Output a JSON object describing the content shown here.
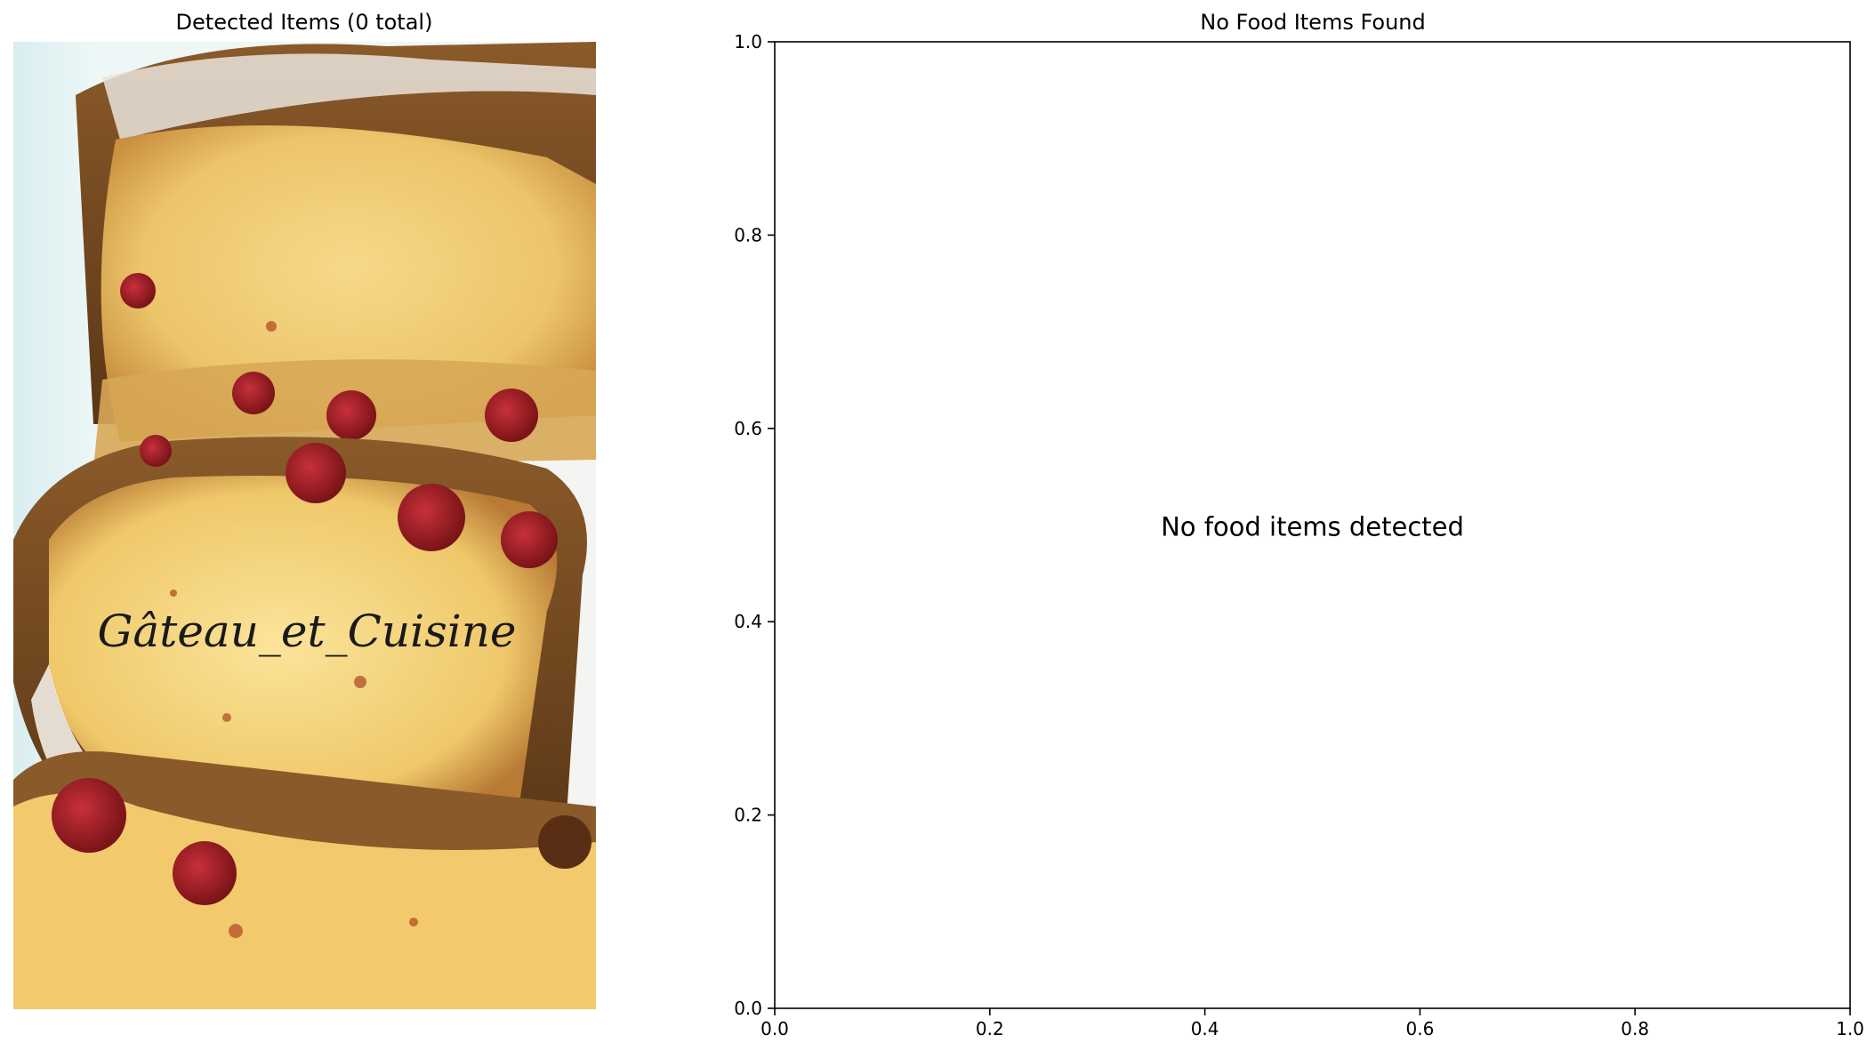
{
  "left_panel": {
    "title": "Detected Items (0 total)",
    "photo_watermark": "Gâteau_et_Cuisine",
    "photo_subject": "sliced cherry loaf cake dusted with powdered sugar"
  },
  "chart_data": {
    "type": "scatter",
    "title": "No Food Items Found",
    "xlabel": "",
    "ylabel": "",
    "xlim": [
      0.0,
      1.0
    ],
    "ylim": [
      0.0,
      1.0
    ],
    "x_ticks": [
      "0.0",
      "0.2",
      "0.4",
      "0.6",
      "0.8",
      "1.0"
    ],
    "y_ticks": [
      "0.0",
      "0.2",
      "0.4",
      "0.6",
      "0.8",
      "1.0"
    ],
    "series": [],
    "annotation": {
      "text": "No food items detected",
      "x": 0.5,
      "y": 0.5
    },
    "grid": false,
    "legend": "none"
  }
}
